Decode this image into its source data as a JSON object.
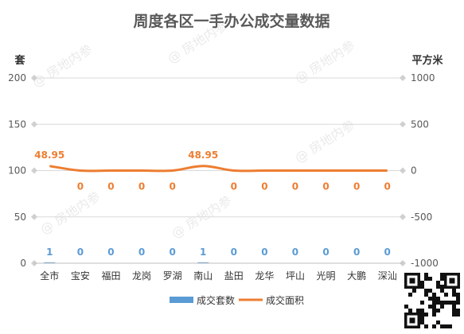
{
  "chart_data": {
    "type": "bar-line",
    "title": "周度各区一手办公成交量数据",
    "categories": [
      "全市",
      "宝安",
      "福田",
      "龙岗",
      "罗湖",
      "南山",
      "盐田",
      "龙华",
      "坪山",
      "光明",
      "大鹏",
      "深汕"
    ],
    "series": [
      {
        "name": "成交套数",
        "type": "bar",
        "axis": "left",
        "color": "#5b9bd5",
        "values": [
          1,
          0,
          0,
          0,
          0,
          1,
          0,
          0,
          0,
          0,
          0,
          0
        ]
      },
      {
        "name": "成交面积",
        "type": "line",
        "axis": "right",
        "color": "#ed7d31",
        "values": [
          48.95,
          0,
          0,
          0,
          0,
          48.95,
          0,
          0,
          0,
          0,
          0,
          0
        ]
      }
    ],
    "y_left": {
      "label": "套",
      "ylim": [
        0,
        200
      ],
      "ticks": [
        0,
        50,
        100,
        150,
        200
      ]
    },
    "y_right": {
      "label": "平方米",
      "ylim": [
        -1000,
        1000
      ],
      "ticks": [
        -1000,
        -500,
        0,
        500,
        1000
      ]
    },
    "grid": true,
    "legend_position": "bottom"
  },
  "watermark": "@ 房地内参"
}
